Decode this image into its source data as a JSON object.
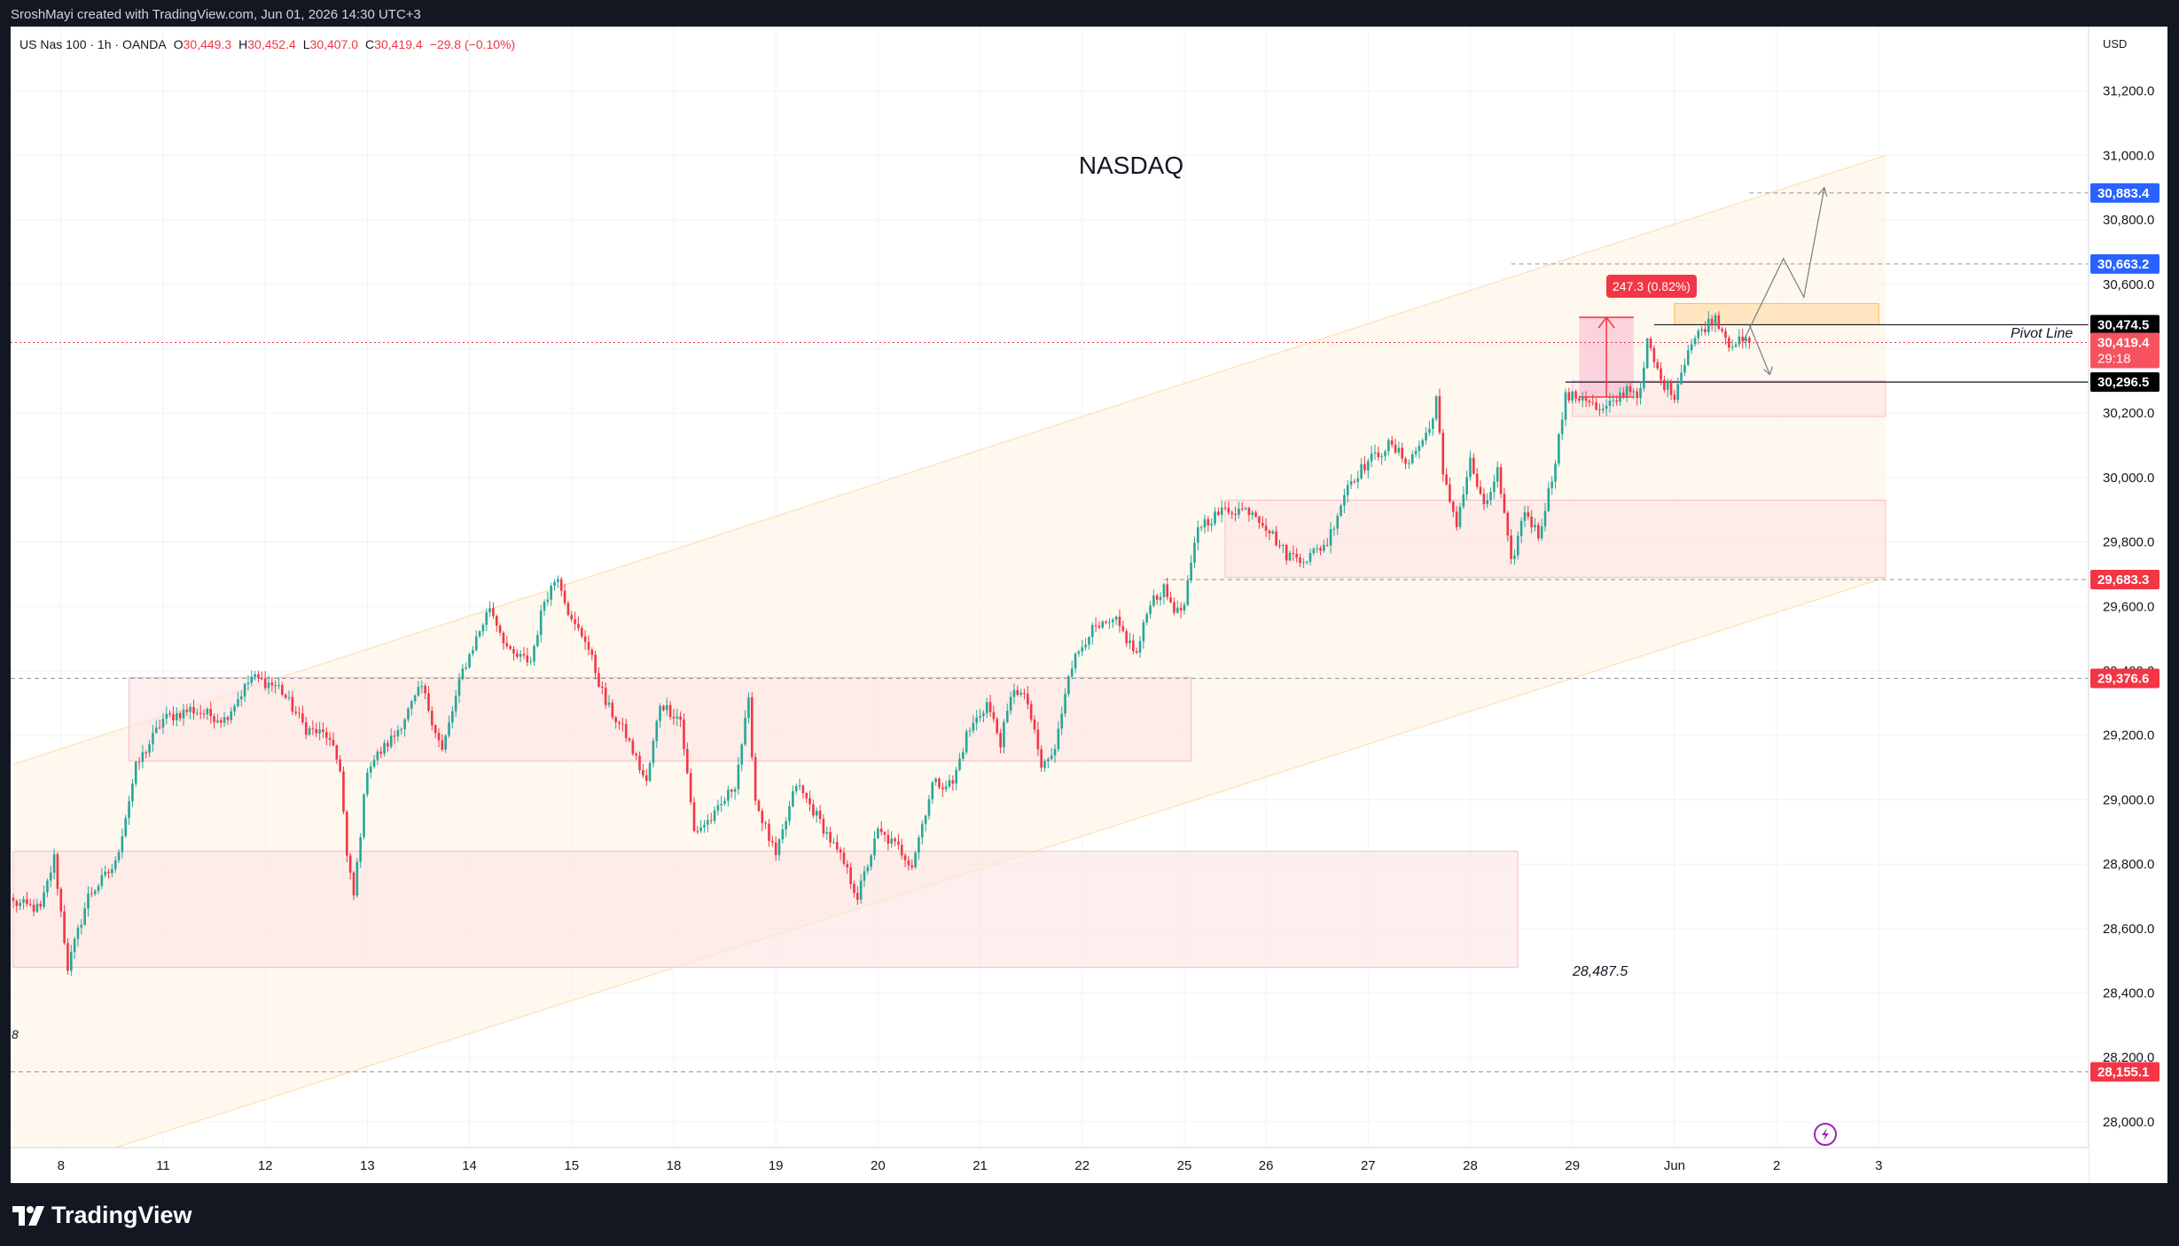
{
  "header": {
    "attribution": "SroshMayi created with TradingView.com, Jun 01, 2026 14:30 UTC+3"
  },
  "legend": {
    "symbol": "US Nas 100 · 1h · OANDA",
    "o_label": "O",
    "o_value": "30,449.3",
    "h_label": "H",
    "h_value": "30,452.4",
    "l_label": "L",
    "l_value": "30,407.0",
    "c_label": "C",
    "c_value": "30,419.4",
    "change": "−29.8 (−0.10%)"
  },
  "chart_title": "NASDAQ",
  "currency": "USD",
  "footer": {
    "brand": "TradingView"
  },
  "annotations": {
    "pivot_line": "Pivot Line",
    "measure": "247.3 (0.82%)",
    "low_level_text": "28,487.5",
    "left_edge_fragment": "8"
  },
  "price_badges": [
    {
      "value": 30883.4,
      "label": "30,883.4",
      "color": "#2962ff",
      "text_color": "#ffffff"
    },
    {
      "value": 30663.2,
      "label": "30,663.2",
      "color": "#2962ff",
      "text_color": "#ffffff"
    },
    {
      "value": 30474.5,
      "label": "30,474.5",
      "color": "#000000",
      "text_color": "#ffffff"
    },
    {
      "value": 30419.4,
      "label": "30,419.4",
      "sub": "29:18",
      "color": "#f7525f",
      "text_color": "#ffffff"
    },
    {
      "value": 30296.5,
      "label": "30,296.5",
      "color": "#000000",
      "text_color": "#ffffff"
    },
    {
      "value": 29683.3,
      "label": "29,683.3",
      "color": "#f23645",
      "text_color": "#ffffff"
    },
    {
      "value": 29376.6,
      "label": "29,376.6",
      "color": "#f23645",
      "text_color": "#ffffff"
    },
    {
      "value": 28155.1,
      "label": "28,155.1",
      "color": "#f23645",
      "text_color": "#ffffff"
    }
  ],
  "colors": {
    "up": "#26a69a",
    "down": "#f23645",
    "channel": "#fff3e0",
    "zone": "#fce4e2",
    "grid": "#f0f3fa"
  },
  "chart_data": {
    "type": "candlestick",
    "title": "NASDAQ",
    "symbol": "US Nas 100",
    "interval": "1h",
    "currency": "USD",
    "ylim": [
      27920,
      31400
    ],
    "y_ticks": [
      28000,
      28200,
      28400,
      28600,
      28800,
      29000,
      29200,
      29400,
      29600,
      29800,
      30000,
      30200,
      30400,
      30600,
      30800,
      31000,
      31200
    ],
    "y_tick_labels": [
      "28,000.0",
      "28,200.0",
      "28,400.0",
      "28,600.0",
      "28,800.0",
      "29,000.0",
      "29,200.0",
      "29,400.0",
      "29,600.0",
      "29,800.0",
      "30,000.0",
      "30,200.0",
      "30,400.0",
      "30,600.0",
      "30,800.0",
      "31,000.0",
      "31,200.0"
    ],
    "x_labels": [
      "8",
      "11",
      "12",
      "13",
      "14",
      "15",
      "18",
      "19",
      "20",
      "21",
      "22",
      "25",
      "26",
      "27",
      "28",
      "29",
      "Jun",
      "2",
      "3"
    ],
    "x_label_bar_index": [
      14,
      44,
      74,
      104,
      134,
      164,
      194,
      224,
      254,
      284,
      314,
      344,
      368,
      398,
      428,
      458,
      488,
      518,
      548
    ],
    "bars_total": 574,
    "anchors": [
      [
        0,
        28680
      ],
      [
        8,
        28660
      ],
      [
        12,
        28820
      ],
      [
        16,
        28480
      ],
      [
        22,
        28700
      ],
      [
        30,
        28800
      ],
      [
        36,
        29100
      ],
      [
        44,
        29250
      ],
      [
        52,
        29280
      ],
      [
        62,
        29250
      ],
      [
        70,
        29380
      ],
      [
        78,
        29350
      ],
      [
        86,
        29220
      ],
      [
        92,
        29200
      ],
      [
        96,
        29100
      ],
      [
        98,
        28820
      ],
      [
        100,
        28700
      ],
      [
        104,
        29100
      ],
      [
        112,
        29200
      ],
      [
        120,
        29350
      ],
      [
        126,
        29150
      ],
      [
        132,
        29400
      ],
      [
        136,
        29500
      ],
      [
        140,
        29600
      ],
      [
        146,
        29450
      ],
      [
        152,
        29430
      ],
      [
        156,
        29620
      ],
      [
        160,
        29700
      ],
      [
        164,
        29550
      ],
      [
        168,
        29500
      ],
      [
        174,
        29300
      ],
      [
        180,
        29200
      ],
      [
        186,
        29050
      ],
      [
        190,
        29300
      ],
      [
        196,
        29250
      ],
      [
        200,
        28900
      ],
      [
        206,
        28950
      ],
      [
        212,
        29050
      ],
      [
        216,
        29300
      ],
      [
        218,
        29000
      ],
      [
        224,
        28820
      ],
      [
        230,
        29050
      ],
      [
        236,
        28950
      ],
      [
        244,
        28800
      ],
      [
        248,
        28700
      ],
      [
        254,
        28900
      ],
      [
        260,
        28850
      ],
      [
        264,
        28800
      ],
      [
        270,
        29050
      ],
      [
        276,
        29050
      ],
      [
        280,
        29200
      ],
      [
        286,
        29300
      ],
      [
        290,
        29180
      ],
      [
        294,
        29350
      ],
      [
        298,
        29300
      ],
      [
        302,
        29100
      ],
      [
        306,
        29150
      ],
      [
        310,
        29400
      ],
      [
        316,
        29520
      ],
      [
        324,
        29550
      ],
      [
        330,
        29450
      ],
      [
        334,
        29620
      ],
      [
        338,
        29650
      ],
      [
        342,
        29580
      ],
      [
        344,
        29600
      ],
      [
        348,
        29850
      ],
      [
        356,
        29900
      ],
      [
        364,
        29900
      ],
      [
        368,
        29850
      ],
      [
        374,
        29760
      ],
      [
        380,
        29750
      ],
      [
        386,
        29800
      ],
      [
        392,
        29980
      ],
      [
        398,
        30050
      ],
      [
        404,
        30100
      ],
      [
        410,
        30050
      ],
      [
        416,
        30150
      ],
      [
        418,
        30250
      ],
      [
        420,
        30000
      ],
      [
        424,
        29860
      ],
      [
        428,
        30050
      ],
      [
        432,
        29900
      ],
      [
        436,
        30020
      ],
      [
        440,
        29730
      ],
      [
        444,
        29900
      ],
      [
        448,
        29820
      ],
      [
        452,
        30000
      ],
      [
        456,
        30250
      ],
      [
        462,
        30250
      ],
      [
        466,
        30200
      ],
      [
        470,
        30230
      ],
      [
        474,
        30280
      ],
      [
        478,
        30260
      ],
      [
        480,
        30420
      ],
      [
        484,
        30300
      ],
      [
        488,
        30260
      ],
      [
        492,
        30400
      ],
      [
        496,
        30460
      ],
      [
        500,
        30500
      ],
      [
        504,
        30420
      ],
      [
        510,
        30419
      ]
    ],
    "horizontal_levels": [
      30883.4,
      30663.2,
      30474.5,
      30296.5,
      29683.3,
      29376.6,
      28155.1
    ],
    "last_price": 30419.4,
    "pivot_level": 30474.5,
    "measure": {
      "from": 30250,
      "to": 30497.3,
      "change": 247.3,
      "percent": 0.82
    },
    "channel": {
      "upper": {
        "from": [
          0,
          29110
        ],
        "to": [
          550,
          31000
        ]
      },
      "lower": {
        "from": [
          30,
          27920
        ],
        "to": [
          550,
          29690
        ]
      }
    },
    "zones": [
      {
        "from_bar": 34,
        "to_bar": 346,
        "low": 29120,
        "high": 29380
      },
      {
        "from_bar": 0,
        "to_bar": 442,
        "low": 28480,
        "high": 28840
      },
      {
        "from_bar": 356,
        "to_bar": 550,
        "low": 29690,
        "high": 29930
      },
      {
        "from_bar": 458,
        "to_bar": 550,
        "low": 30190,
        "high": 30300
      },
      {
        "from_bar": 488,
        "to_bar": 548,
        "low": 30474.5,
        "high": 30540
      }
    ],
    "projection_up": [
      [
        508,
        30419
      ],
      [
        520,
        30680
      ],
      [
        526,
        30560
      ],
      [
        532,
        30900
      ]
    ],
    "projection_down": [
      [
        510,
        30474
      ],
      [
        516,
        30320
      ]
    ]
  }
}
